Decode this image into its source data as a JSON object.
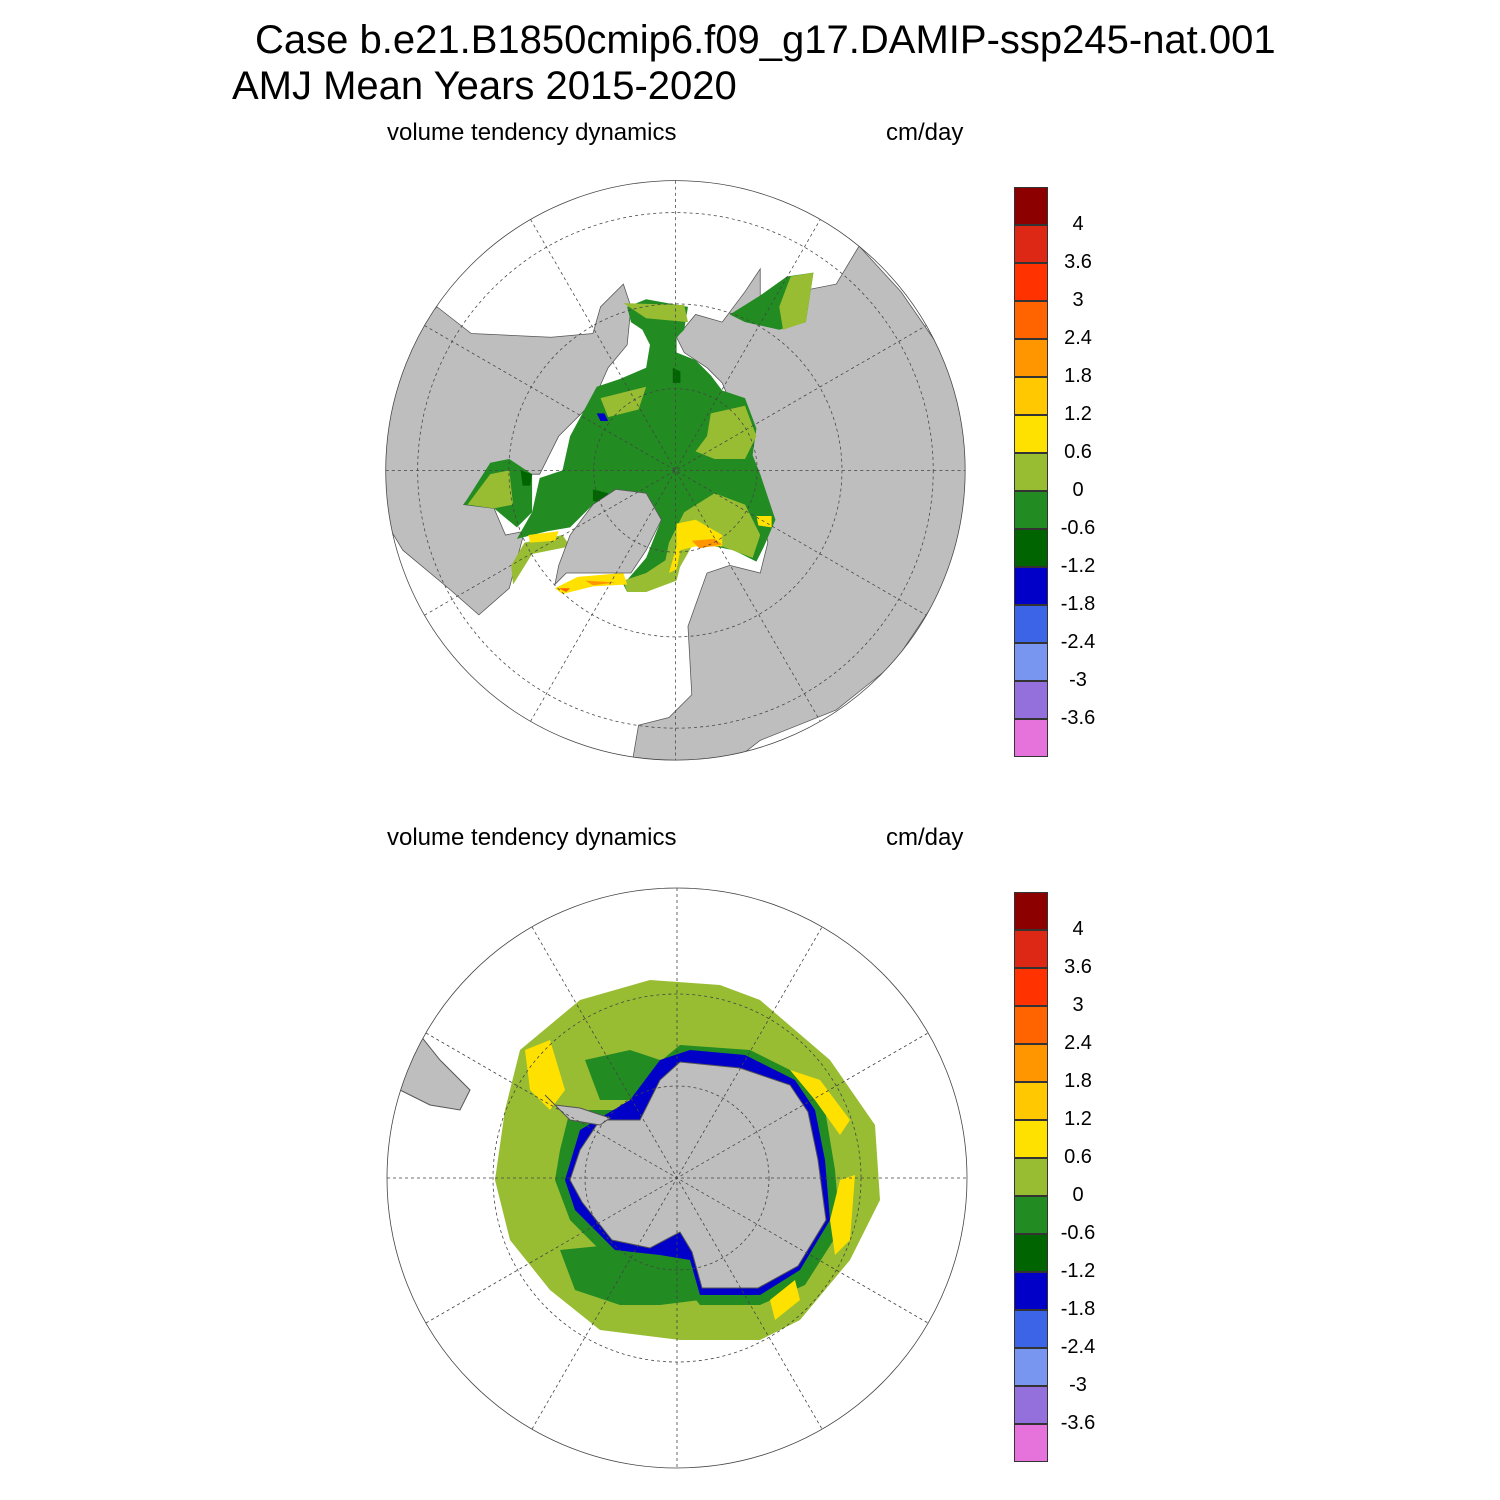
{
  "title": {
    "line1": "Case b.e21.B1850cmip6.f09_g17.DAMIP-ssp245-nat.001",
    "line2": "AMJ Mean   Years 2015-2020"
  },
  "panels": [
    {
      "name": "north-hemisphere",
      "left_label": "volume tendency dynamics",
      "right_label": "cm/day"
    },
    {
      "name": "south-hemisphere",
      "left_label": "volume tendency dynamics",
      "right_label": "cm/day"
    }
  ],
  "colorbar": {
    "labels": [
      "4",
      "3.6",
      "3",
      "2.4",
      "1.8",
      "1.2",
      "0.6",
      "0",
      "-0.6",
      "-1.2",
      "-1.8",
      "-2.4",
      "-3",
      "-3.6"
    ],
    "colors": [
      "#8c0000",
      "#dc2814",
      "#ff3200",
      "#ff6400",
      "#ff9600",
      "#ffc800",
      "#ffe100",
      "#98bd32",
      "#228b22",
      "#006400",
      "#0000c8",
      "#3c64e6",
      "#7896f0",
      "#9370db",
      "#e673dc"
    ]
  },
  "map_colors": {
    "land": "#bebebe",
    "ocean": "#ffffff"
  }
}
